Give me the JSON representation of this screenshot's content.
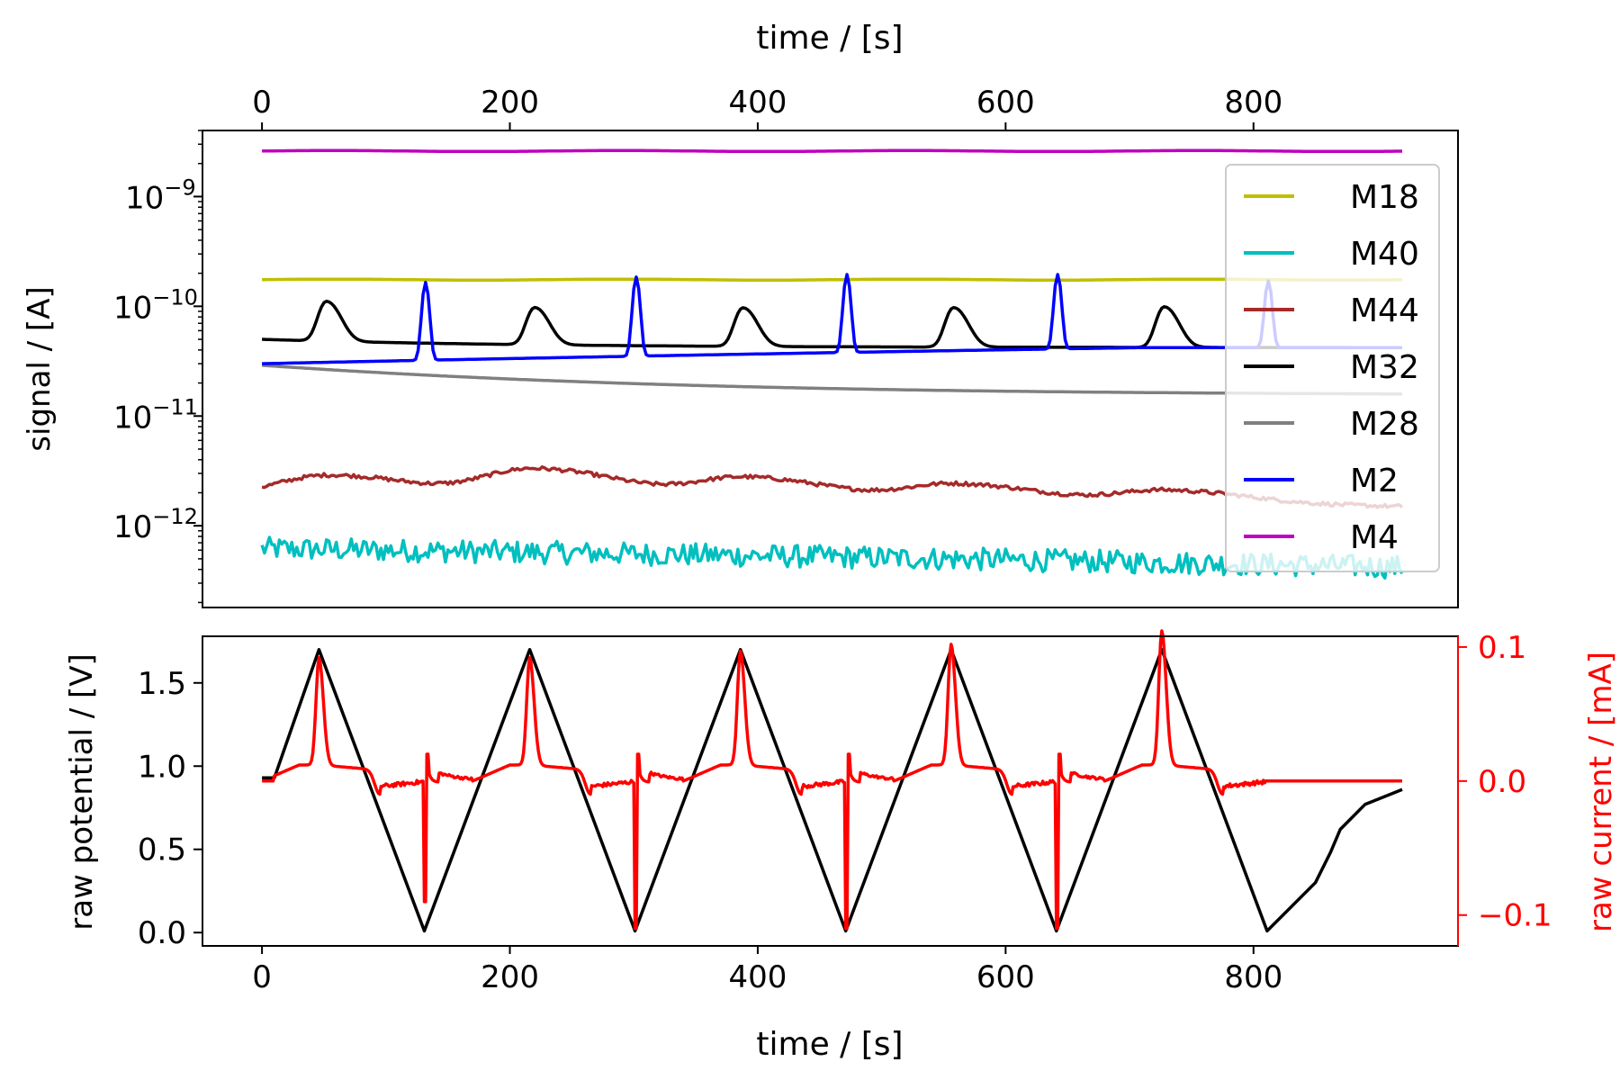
{
  "chart_data": [
    {
      "type": "line",
      "panel": "top",
      "ylabel": "signal / [A]",
      "top_xlabel": "time / [s]",
      "x_ticks": [
        0,
        200,
        400,
        600,
        800
      ],
      "xlim": [
        -48,
        965
      ],
      "y_scale": "log",
      "ylim": [
        1.8e-13,
        4e-09
      ],
      "y_ticks": [
        {
          "value": 1e-09,
          "base": "10",
          "exp": "−9"
        },
        {
          "value": 1e-10,
          "base": "10",
          "exp": "−10"
        },
        {
          "value": 1e-11,
          "base": "10",
          "exp": "−11"
        },
        {
          "value": 1e-12,
          "base": "10",
          "exp": "−12"
        }
      ],
      "legend_position": "right",
      "series": [
        {
          "name": "M18",
          "color": "#bfbf00",
          "kind": "flat",
          "level": 1.75e-10
        },
        {
          "name": "M40",
          "color": "#00bfbf",
          "kind": "noisy",
          "start": 6.2e-13,
          "end": 4.2e-13,
          "noise": 0.12
        },
        {
          "name": "M44",
          "color": "#a52a2a",
          "kind": "bumps",
          "base_start": 1.9e-12,
          "base_end": 1.45e-12,
          "bumps": [
            [
              55,
              2.9e-12
            ],
            [
              220,
              3.3e-12
            ],
            [
              390,
              2.75e-12
            ],
            [
              560,
              2.4e-12
            ],
            [
              730,
              2.1e-12
            ],
            [
              900,
              1.5e-12
            ]
          ]
        },
        {
          "name": "M32",
          "color": "#000000",
          "kind": "peaks",
          "base_start": 5e-11,
          "base_end": 4.2e-11,
          "peaks": [
            [
              52,
              1.05e-10
            ],
            [
              220,
              9.5e-11
            ],
            [
              388,
              9.6e-11
            ],
            [
              558,
              9.7e-11
            ],
            [
              728,
              9.9e-11
            ]
          ]
        },
        {
          "name": "M28",
          "color": "#808080",
          "kind": "decay",
          "start": 2.9e-11,
          "end": 1.55e-11
        },
        {
          "name": "M2",
          "color": "#0000ff",
          "kind": "spikes",
          "base_start": 3e-11,
          "base_end": 4.2e-11,
          "spikes": [
            [
              132,
              1.65e-10
            ],
            [
              302,
              1.85e-10
            ],
            [
              472,
              1.95e-10
            ],
            [
              642,
              1.95e-10
            ],
            [
              812,
              1.7e-10
            ]
          ]
        },
        {
          "name": "M4",
          "color": "#bf00bf",
          "kind": "flat",
          "level": 2.6e-09
        }
      ]
    },
    {
      "type": "line",
      "panel": "bottom",
      "xlabel": "time / [s]",
      "ylabel": "raw potential / [V]",
      "y2label": "raw current / [mA]",
      "x_ticks": [
        0,
        200,
        400,
        600,
        800
      ],
      "xlim": [
        -48,
        965
      ],
      "ylim": [
        -0.08,
        1.78
      ],
      "y_ticks": [
        "0.0",
        "0.5",
        "1.0",
        "1.5"
      ],
      "y2lim": [
        -0.123,
        0.108
      ],
      "y2_ticks": [
        "−0.1",
        "0.0",
        "0.1"
      ],
      "series": [
        {
          "name": "raw potential",
          "color": "#000000",
          "axis": "left",
          "points": [
            [
              0,
              0.93
            ],
            [
              10,
              0.93
            ],
            [
              46,
              1.7
            ],
            [
              131,
              0.01
            ],
            [
              216,
              1.7
            ],
            [
              301,
              0.01
            ],
            [
              386,
              1.7
            ],
            [
              471,
              0.01
            ],
            [
              556,
              1.7
            ],
            [
              641,
              0.01
            ],
            [
              726,
              1.7
            ],
            [
              811,
              0.01
            ],
            [
              850,
              0.3
            ],
            [
              862,
              0.48
            ],
            [
              870,
              0.62
            ],
            [
              890,
              0.77
            ],
            [
              920,
              0.86
            ]
          ]
        },
        {
          "name": "raw current",
          "color": "#ff0000",
          "axis": "right",
          "cycle_starts": [
            0,
            170,
            340,
            510,
            680
          ],
          "peak_values": [
            0.08,
            0.08,
            0.085,
            0.09,
            0.1
          ],
          "spike_values": [
            -0.09,
            -0.11,
            -0.11,
            -0.11,
            -0.11
          ],
          "flat_after": 811
        }
      ]
    }
  ]
}
